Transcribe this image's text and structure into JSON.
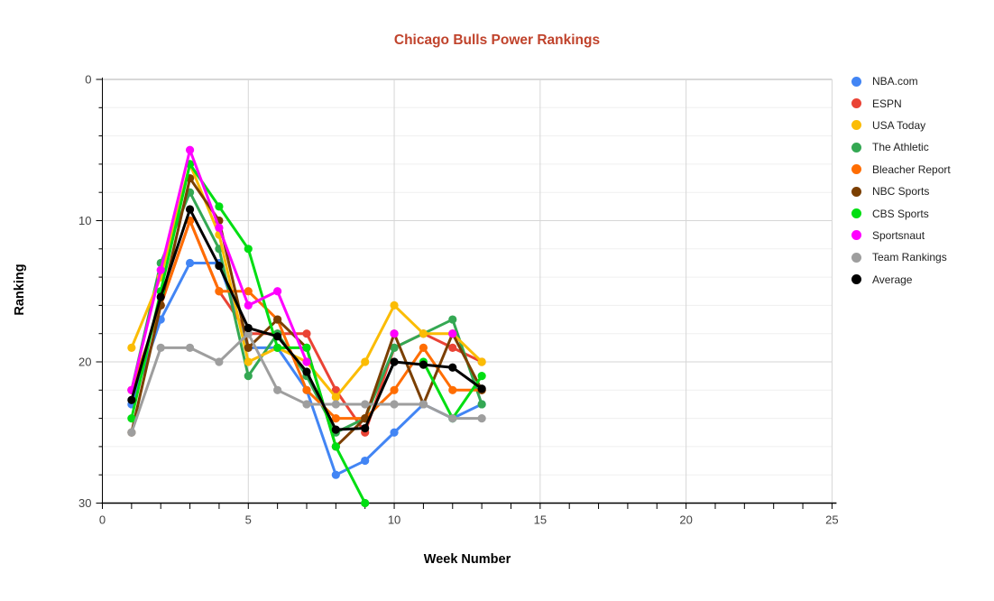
{
  "chart_data": {
    "type": "line",
    "title": "Chicago Bulls Power Rankings",
    "title_color": "#c0432c",
    "xlabel": "Week Number",
    "ylabel": "Ranking",
    "xlim": [
      0,
      25
    ],
    "ylim": [
      0,
      30
    ],
    "y_inverted": true,
    "grid": true,
    "legend_position": "right",
    "x_ticks": [
      "0",
      "5",
      "10",
      "15",
      "20",
      "25"
    ],
    "y_ticks": [
      "0",
      "10",
      "20",
      "30"
    ],
    "x": [
      1,
      2,
      3,
      4,
      5,
      6,
      7,
      8,
      9,
      10,
      11,
      12,
      13
    ],
    "series": [
      {
        "name": "NBA.com",
        "color": "#4285F4",
        "values": [
          23,
          17,
          13,
          13,
          19,
          19,
          22,
          28,
          27,
          25,
          23,
          24,
          23
        ]
      },
      {
        "name": "ESPN",
        "color": "#EA4335",
        "values": [
          22,
          16,
          10,
          15,
          18,
          18,
          18,
          22,
          25,
          19,
          18,
          19,
          20
        ]
      },
      {
        "name": "USA Today",
        "color": "#FBBC04",
        "values": [
          19,
          14,
          6,
          11,
          20,
          19,
          20,
          22.5,
          20,
          16,
          18,
          18,
          20
        ]
      },
      {
        "name": "The Athletic",
        "color": "#34A853",
        "values": [
          22,
          13,
          8,
          12,
          21,
          18,
          21,
          25,
          24,
          19,
          18,
          17,
          23
        ]
      },
      {
        "name": "Bleacher Report",
        "color": "#FF6D01",
        "values": [
          22,
          16,
          10,
          15,
          15,
          17,
          22,
          24,
          24,
          22,
          19,
          22,
          22
        ]
      },
      {
        "name": "NBC Sports",
        "color": "#7B3F00",
        "values": [
          25,
          16,
          7,
          10,
          19,
          17,
          19,
          26,
          24,
          18,
          23,
          18,
          22
        ]
      },
      {
        "name": "CBS Sports",
        "color": "#00DE12",
        "values": [
          24,
          15,
          6,
          9,
          12,
          19,
          19,
          26,
          30,
          null,
          20,
          24,
          21
        ]
      },
      {
        "name": "Sportsnaut",
        "color": "#FF00FF",
        "values": [
          22,
          13.5,
          5,
          10.5,
          16,
          15,
          20,
          null,
          null,
          18,
          null,
          18,
          null
        ]
      },
      {
        "name": "Team Rankings",
        "color": "#9E9E9E",
        "values": [
          25,
          19,
          19,
          20,
          18,
          22,
          23,
          23,
          23,
          23,
          23,
          24,
          24
        ]
      },
      {
        "name": "Average",
        "color": "#000000",
        "values": [
          22.7,
          15.4,
          9.2,
          13.2,
          17.6,
          18.2,
          20.7,
          24.8,
          24.7,
          20,
          20.2,
          20.4,
          21.9
        ]
      }
    ],
    "draw_order": [
      "NBA.com",
      "ESPN",
      "The Athletic",
      "USA Today",
      "Bleacher Report",
      "NBC Sports",
      "CBS Sports",
      "Sportsnaut",
      "Team Rankings",
      "Average"
    ],
    "vertical_gridline_weeks": [
      5,
      10,
      15,
      20,
      25
    ],
    "minor_y_step": 2,
    "minor_x_step": 1
  }
}
